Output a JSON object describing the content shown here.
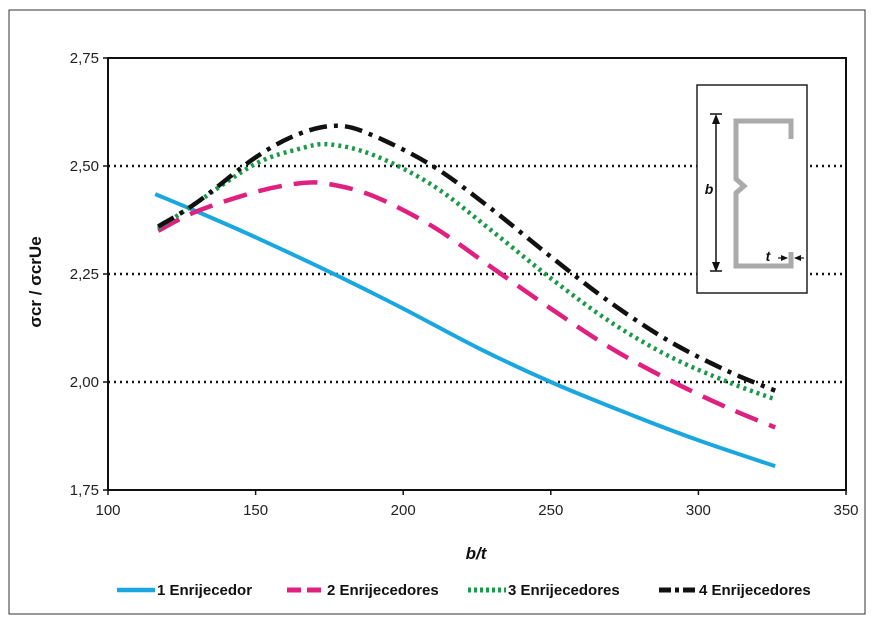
{
  "chart_data": {
    "type": "line",
    "xlabel": "b/t",
    "ylabel": "σcr / σcrUe",
    "xlim": [
      100,
      350
    ],
    "ylim": [
      1.75,
      2.75
    ],
    "x_ticks": [
      "100",
      "150",
      "200",
      "250",
      "300",
      "350"
    ],
    "y_ticks": [
      "1,75",
      "2,00",
      "2,25",
      "2,50",
      "2,75"
    ],
    "grid": "dotted horizontal at 2,00 / 2,25 / 2,50",
    "legend_position": "bottom",
    "series": [
      {
        "name": "1 Enrijecedor",
        "color": "#1aa7e0",
        "dash": "solid",
        "x": [
          116,
          130,
          150,
          175,
          200,
          225,
          250,
          275,
          300,
          326
        ],
        "y": [
          2.435,
          2.395,
          2.335,
          2.255,
          2.17,
          2.08,
          2.0,
          1.93,
          1.865,
          1.805
        ]
      },
      {
        "name": "2 Enrijecedores",
        "color": "#e0207f",
        "dash": "long-dash",
        "x": [
          117,
          130,
          150,
          165,
          175,
          190,
          210,
          230,
          250,
          270,
          290,
          310,
          326
        ],
        "y": [
          2.35,
          2.395,
          2.44,
          2.46,
          2.458,
          2.43,
          2.36,
          2.265,
          2.17,
          2.08,
          2.005,
          1.94,
          1.895
        ]
      },
      {
        "name": "3 Enrijecedores",
        "color": "#1a9a48",
        "dash": "dotted",
        "x": [
          117,
          130,
          150,
          165,
          175,
          190,
          210,
          230,
          250,
          270,
          290,
          310,
          326
        ],
        "y": [
          2.355,
          2.415,
          2.505,
          2.54,
          2.55,
          2.525,
          2.455,
          2.35,
          2.24,
          2.14,
          2.06,
          2.0,
          1.96
        ]
      },
      {
        "name": "4 Enrijecedores",
        "color": "#111111",
        "dash": "dash-dot",
        "x": [
          117,
          130,
          150,
          165,
          178,
          190,
          210,
          230,
          250,
          270,
          290,
          310,
          326
        ],
        "y": [
          2.36,
          2.415,
          2.52,
          2.575,
          2.593,
          2.57,
          2.5,
          2.4,
          2.29,
          2.185,
          2.095,
          2.025,
          1.98
        ]
      }
    ],
    "inset": {
      "dimension_b": "b",
      "dimension_t": "t"
    }
  }
}
